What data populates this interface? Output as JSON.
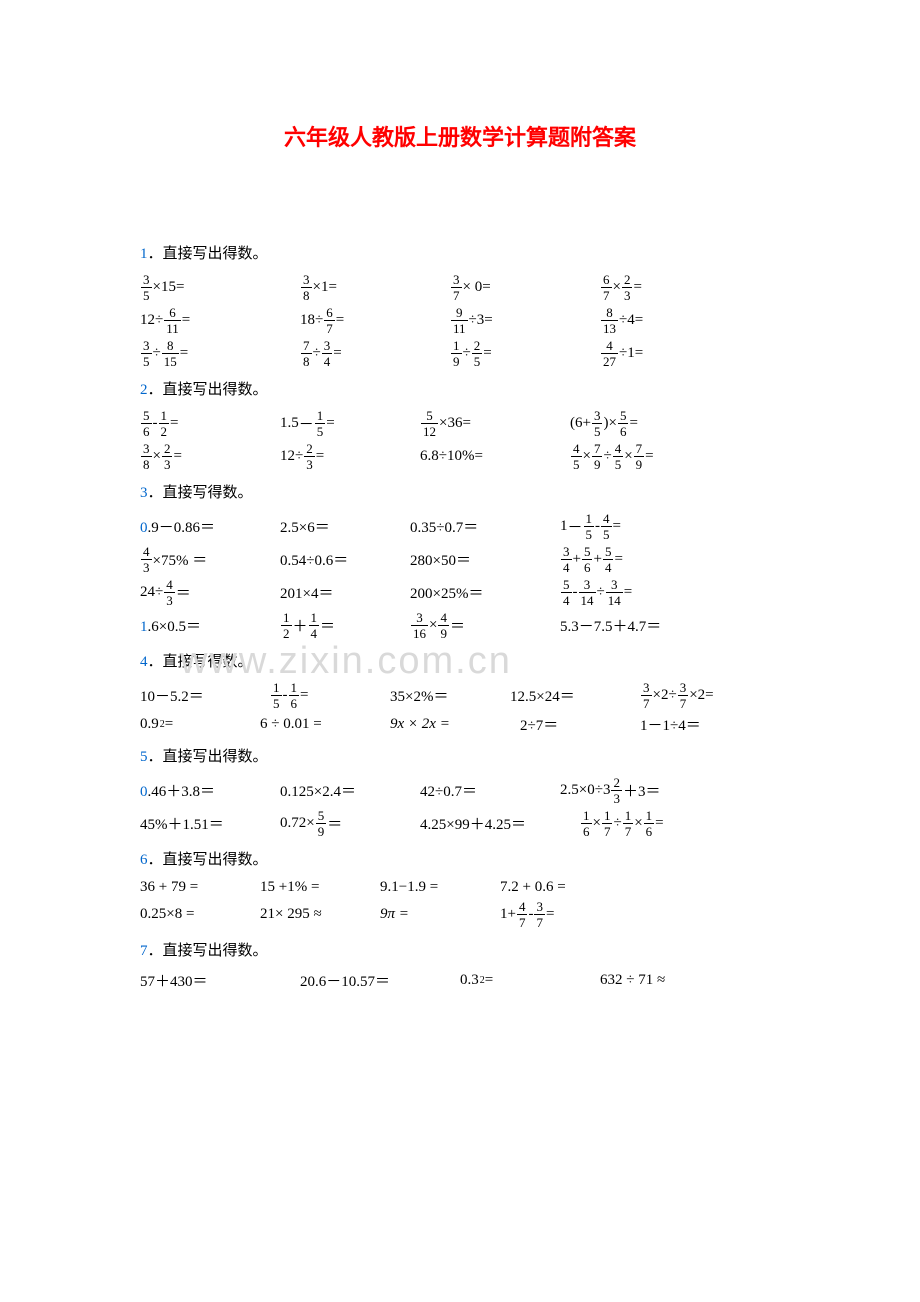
{
  "title_color": "#ff0000",
  "blue_color": "#0066cc",
  "title": "六年级人教版上册数学计算题附答案",
  "sections": [
    {
      "num": "1",
      "head": "．直接写出得数。"
    },
    {
      "num": "2",
      "head": "．直接写出得数。"
    },
    {
      "num": "3",
      "head": "．直接写得数。"
    },
    {
      "num": "4",
      "head": "．直接写得数。"
    },
    {
      "num": "5",
      "head": "．直接写出得数。"
    },
    {
      "num": "6",
      "head": "．直接写出得数。"
    },
    {
      "num": "7",
      "head": "．直接写出得数。"
    }
  ],
  "watermark": "www.zixin.com.cn",
  "t": {
    "eq": "＝",
    "eq2": "=",
    "times": "×",
    "div": "÷",
    "plus": "＋",
    "plus2": "+",
    "minus": "－",
    "minus2": "-",
    "pct": "%",
    "approx": "≈",
    "pi": "π",
    "lp": "(",
    "rp": ")"
  },
  "s1": {
    "r1": {
      "a_n": "3",
      "a_d": "5",
      "a_x": "15",
      "b_n": "3",
      "b_d": "8",
      "b_x": "1",
      "c_n": "3",
      "c_d": "7",
      "c_x": "0",
      "d1_n": "6",
      "d1_d": "7",
      "d2_n": "2",
      "d2_d": "3"
    },
    "r2": {
      "a_x": "12",
      "a_n": "6",
      "a_d": "11",
      "b_x": "18",
      "b_n": "6",
      "b_d": "7",
      "c_n": "9",
      "c_d": "11",
      "c_x": "3",
      "d_n": "8",
      "d_d": "13",
      "d_x": "4"
    },
    "r3": {
      "a1_n": "3",
      "a1_d": "5",
      "a2_n": "8",
      "a2_d": "15",
      "b1_n": "7",
      "b1_d": "8",
      "b2_n": "3",
      "b2_d": "4",
      "c1_n": "1",
      "c1_d": "9",
      "c2_n": "2",
      "c2_d": "5",
      "d_n": "4",
      "d_d": "27",
      "d_x": "1"
    }
  },
  "s2": {
    "r1": {
      "a1_n": "5",
      "a1_d": "6",
      "a2_n": "1",
      "a2_d": "2",
      "bL": "1.5",
      "b_n": "1",
      "b_d": "5",
      "c_n": "5",
      "c_d": "12",
      "c_x": "36",
      "dL": "6",
      "d1_n": "3",
      "d1_d": "5",
      "d2_n": "5",
      "d2_d": "6"
    },
    "r2": {
      "a1_n": "3",
      "a1_d": "8",
      "a2_n": "2",
      "a2_d": "3",
      "bL": "12",
      "b_n": "2",
      "b_d": "3",
      "cL": "6.8",
      "cR": "10%",
      "d1_n": "4",
      "d1_d": "5",
      "d2_n": "7",
      "d2_d": "9",
      "d3_n": "4",
      "d3_d": "5",
      "d4_n": "7",
      "d4_d": "9"
    }
  },
  "s3": {
    "r1": {
      "a": "0.9－0.86＝",
      "b": "2.5×6＝",
      "c": "0.35÷0.7＝",
      "dL": "1",
      "d1_n": "1",
      "d1_d": "5",
      "d2_n": "4",
      "d2_d": "5"
    },
    "r2": {
      "a_n": "4",
      "a_d": "3",
      "aR": "×75% ＝",
      "b": "0.54÷0.6＝",
      "c": "280×50＝",
      "d1_n": "3",
      "d1_d": "4",
      "d2_n": "5",
      "d2_d": "6",
      "d3_n": "5",
      "d3_d": "4"
    },
    "r3": {
      "aL": "24÷",
      "a_n": "4",
      "a_d": "3",
      "b": "201×4＝",
      "c": "200×25%＝",
      "d1_n": "5",
      "d1_d": "4",
      "d2_n": "3",
      "d2_d": "14",
      "d3_n": "3",
      "d3_d": "14"
    },
    "r4": {
      "a": "1.6×0.5＝",
      "b1_n": "1",
      "b1_d": "2",
      "b2_n": "1",
      "b2_d": "4",
      "c1_n": "3",
      "c1_d": "16",
      "c2_n": "4",
      "c2_d": "9",
      "d": "5.3－7.5＋4.7＝"
    }
  },
  "s4": {
    "r1": {
      "a": "10－5.2＝",
      "b1_n": "1",
      "b1_d": "5",
      "b2_n": "1",
      "b2_d": "6",
      "c": "35×2%＝",
      "d": "12.5×24＝",
      "e_n": "3",
      "e_d": "7",
      "eX": "2"
    },
    "r2": {
      "a": "0.9",
      "aExp": "2",
      "b": "6 ÷ 0.01 =",
      "c": "9x × 2x =",
      "d": "2÷7＝",
      "e": "1－1÷4＝"
    }
  },
  "s5": {
    "r1": {
      "a": "0.46＋3.8＝",
      "b": "0.125×2.4＝",
      "c": "42÷0.7＝",
      "dL": "2.5×0÷3",
      "d_n": "2",
      "d_d": "3",
      "dR": "＋3＝"
    },
    "r2": {
      "a": "45%＋1.51＝",
      "bL": "0.72×",
      "b_n": "5",
      "b_d": "9",
      "c": "4.25×99＋4.25＝",
      "d1_n": "1",
      "d1_d": "6",
      "d2_n": "1",
      "d2_d": "7",
      "d3_n": "1",
      "d3_d": "7",
      "d4_n": "1",
      "d4_d": "6"
    }
  },
  "s6": {
    "r1": {
      "a": "36 + 79 =",
      "b": "15 +1% =",
      "c": "9.1−1.9 =",
      "d": "7.2 + 0.6 ="
    },
    "r2": {
      "a": "0.25×8 =",
      "b": "21× 295 ≈",
      "c": "9π =",
      "dL": "1+",
      "d1_n": "4",
      "d1_d": "7",
      "d2_n": "3",
      "d2_d": "7"
    }
  },
  "s7": {
    "r1": {
      "a": "57＋430＝",
      "b": "20.6－10.57＝",
      "cL": "0.3",
      "cExp": "2",
      "d": "632 ÷ 71 ≈"
    }
  }
}
